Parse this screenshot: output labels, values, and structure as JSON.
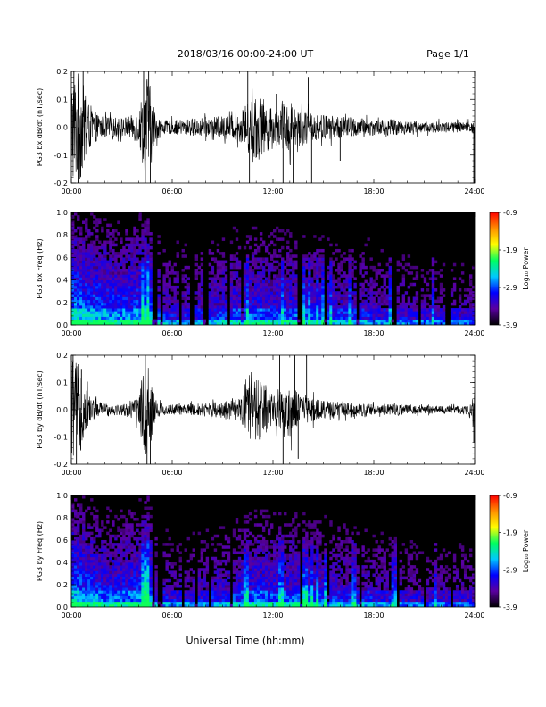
{
  "header": {
    "title": "2018/03/16  00:00-24:00 UT",
    "page": "Page 1/1"
  },
  "xlabel": "Universal Time (hh:mm)",
  "chart_data": [
    {
      "type": "line",
      "ylabel": "PG3 bx dB/dt (nT/sec)",
      "xlim": [
        0,
        24
      ],
      "ylim": [
        -0.2,
        0.2
      ],
      "xticks": [
        "00:00",
        "06:00",
        "12:00",
        "18:00",
        "24:00"
      ],
      "yticks": [
        "-0.2",
        "-0.1",
        "0.0",
        "0.1",
        "0.2"
      ],
      "color": "#000000",
      "envelope": {
        "hours": [
          0,
          0.5,
          1,
          1.5,
          2,
          2.5,
          3,
          3.5,
          4,
          4.3,
          4.5,
          4.8,
          5,
          5.5,
          6,
          7,
          8,
          9,
          10,
          10.5,
          11,
          11.5,
          12,
          12.5,
          13,
          13.5,
          14,
          14.5,
          15,
          16,
          17,
          18,
          19,
          20,
          21,
          22,
          23,
          23.8,
          24
        ],
        "amplitude": [
          0.2,
          0.2,
          0.09,
          0.05,
          0.04,
          0.035,
          0.035,
          0.04,
          0.06,
          0.15,
          0.2,
          0.12,
          0.05,
          0.025,
          0.025,
          0.03,
          0.035,
          0.04,
          0.05,
          0.09,
          0.12,
          0.1,
          0.06,
          0.08,
          0.1,
          0.07,
          0.06,
          0.05,
          0.045,
          0.04,
          0.035,
          0.03,
          0.03,
          0.025,
          0.02,
          0.02,
          0.02,
          0.02,
          0.05
        ]
      },
      "spikes": [
        {
          "hour": 0.15,
          "value": 0.2
        },
        {
          "hour": 0.4,
          "value": -0.2
        },
        {
          "hour": 0.7,
          "value": 0.2
        },
        {
          "hour": 4.3,
          "value": 0.2
        },
        {
          "hour": 4.4,
          "value": -0.2
        },
        {
          "hour": 4.6,
          "value": 0.2
        },
        {
          "hour": 4.7,
          "value": -0.2
        },
        {
          "hour": 10.5,
          "value": 0.2
        },
        {
          "hour": 10.6,
          "value": -0.2
        },
        {
          "hour": 12.2,
          "value": 0.12
        },
        {
          "hour": 12.6,
          "value": -0.2
        },
        {
          "hour": 13.2,
          "value": -0.2
        },
        {
          "hour": 14.1,
          "value": 0.18
        },
        {
          "hour": 14.3,
          "value": -0.2
        },
        {
          "hour": 16.0,
          "value": -0.12
        },
        {
          "hour": 23.95,
          "value": -0.2
        }
      ]
    },
    {
      "type": "heatmap",
      "ylabel": "PG3 bx Freq (Hz)",
      "xlim": [
        0,
        24
      ],
      "ylim": [
        0,
        1.0
      ],
      "xticks": [
        "00:00",
        "06:00",
        "12:00",
        "18:00",
        "24:00"
      ],
      "yticks": [
        "0.0",
        "0.2",
        "0.4",
        "0.6",
        "0.8",
        "1.0"
      ],
      "colorbar": {
        "label": "Log₁₀ Power",
        "ticks": [
          "-3.9",
          "-2.9",
          "-1.9",
          "-0.9"
        ],
        "range": [
          -3.9,
          -0.9
        ],
        "colors": [
          "#000000",
          "#5a00a0",
          "#0000ff",
          "#00c8ff",
          "#00ff60",
          "#ffff00",
          "#ff9000",
          "#ff0000"
        ]
      },
      "activity": {
        "hours": [
          0,
          1,
          2,
          3,
          4,
          4.5,
          5,
          6,
          7,
          8,
          9,
          10,
          11,
          12,
          13,
          14,
          15,
          16,
          17,
          18,
          19,
          20,
          21,
          22,
          23,
          24
        ],
        "level": [
          0.85,
          0.75,
          0.7,
          0.65,
          0.7,
          0.85,
          0.5,
          0.4,
          0.4,
          0.45,
          0.5,
          0.55,
          0.6,
          0.55,
          0.55,
          0.55,
          0.5,
          0.45,
          0.45,
          0.4,
          0.35,
          0.35,
          0.3,
          0.3,
          0.3,
          0.3
        ]
      },
      "dark_gaps": [
        4.9,
        5.1,
        5.3,
        6.5,
        7.2,
        8.0,
        9.4,
        10.2,
        13.6,
        15.1,
        17.0,
        19.2,
        20.7,
        22.4
      ],
      "bright_bursts": [
        4.2,
        4.5,
        10.2,
        10.5,
        12.6,
        13.8,
        14.2,
        14.6,
        15.0,
        15.5,
        16.5,
        19.0,
        21.5
      ]
    },
    {
      "type": "line",
      "ylabel": "PG3 by dB/dt (nT/sec)",
      "xlim": [
        0,
        24
      ],
      "ylim": [
        -0.2,
        0.2
      ],
      "xticks": [
        "00:00",
        "06:00",
        "12:00",
        "18:00",
        "24:00"
      ],
      "yticks": [
        "-0.2",
        "-0.1",
        "0.0",
        "0.1",
        "0.2"
      ],
      "color": "#000000",
      "envelope": {
        "hours": [
          0,
          0.5,
          1,
          1.5,
          2,
          2.5,
          3,
          3.5,
          4,
          4.3,
          4.5,
          4.8,
          5,
          5.5,
          6,
          7,
          8,
          9,
          10,
          10.5,
          11,
          11.5,
          12,
          12.5,
          13,
          13.5,
          14,
          14.5,
          15,
          16,
          17,
          18,
          19,
          20,
          21,
          22,
          23,
          23.8,
          24
        ],
        "amplitude": [
          0.2,
          0.16,
          0.06,
          0.035,
          0.025,
          0.02,
          0.02,
          0.03,
          0.05,
          0.16,
          0.2,
          0.12,
          0.04,
          0.02,
          0.02,
          0.02,
          0.025,
          0.03,
          0.04,
          0.08,
          0.12,
          0.1,
          0.05,
          0.08,
          0.1,
          0.06,
          0.05,
          0.04,
          0.035,
          0.03,
          0.025,
          0.02,
          0.02,
          0.02,
          0.015,
          0.015,
          0.015,
          0.02,
          0.06
        ]
      },
      "spikes": [
        {
          "hour": 0.1,
          "value": 0.2
        },
        {
          "hour": 0.3,
          "value": -0.2
        },
        {
          "hour": 0.6,
          "value": 0.15
        },
        {
          "hour": 4.4,
          "value": 0.2
        },
        {
          "hour": 4.5,
          "value": -0.2
        },
        {
          "hour": 4.7,
          "value": -0.2
        },
        {
          "hour": 11.2,
          "value": -0.1
        },
        {
          "hour": 12.4,
          "value": 0.2
        },
        {
          "hour": 12.6,
          "value": -0.2
        },
        {
          "hour": 13.3,
          "value": 0.2
        },
        {
          "hour": 13.5,
          "value": -0.18
        },
        {
          "hour": 14.0,
          "value": 0.2
        },
        {
          "hour": 23.95,
          "value": -0.12
        }
      ]
    },
    {
      "type": "heatmap",
      "ylabel": "PG3 by Freq (Hz)",
      "xlim": [
        0,
        24
      ],
      "ylim": [
        0,
        1.0
      ],
      "xticks": [
        "00:00",
        "06:00",
        "12:00",
        "18:00",
        "24:00"
      ],
      "yticks": [
        "0.0",
        "0.2",
        "0.4",
        "0.6",
        "0.8",
        "1.0"
      ],
      "colorbar": {
        "label": "Log₁₀ Power",
        "ticks": [
          "-3.9",
          "-2.9",
          "-1.9",
          "-0.9"
        ],
        "range": [
          -3.9,
          -0.9
        ],
        "colors": [
          "#000000",
          "#5a00a0",
          "#0000ff",
          "#00c8ff",
          "#00ff60",
          "#ffff00",
          "#ff9000",
          "#ff0000"
        ]
      },
      "activity": {
        "hours": [
          0,
          1,
          2,
          3,
          4,
          4.5,
          5,
          6,
          7,
          8,
          9,
          10,
          11,
          12,
          13,
          14,
          15,
          16,
          17,
          18,
          19,
          20,
          21,
          22,
          23,
          24
        ],
        "level": [
          0.8,
          0.7,
          0.6,
          0.6,
          0.65,
          0.85,
          0.45,
          0.35,
          0.35,
          0.4,
          0.45,
          0.5,
          0.6,
          0.55,
          0.55,
          0.55,
          0.5,
          0.45,
          0.4,
          0.4,
          0.35,
          0.3,
          0.3,
          0.3,
          0.3,
          0.3
        ]
      },
      "dark_gaps": [
        4.9,
        5.2,
        5.4,
        6.6,
        7.4,
        8.3,
        9.5,
        13.7,
        15.3,
        17.2,
        19.5,
        21.0,
        22.6
      ],
      "bright_bursts": [
        4.3,
        4.6,
        10.4,
        12.5,
        13.9,
        14.3,
        14.7,
        15.2,
        16.8,
        19.2,
        21.7
      ]
    }
  ]
}
